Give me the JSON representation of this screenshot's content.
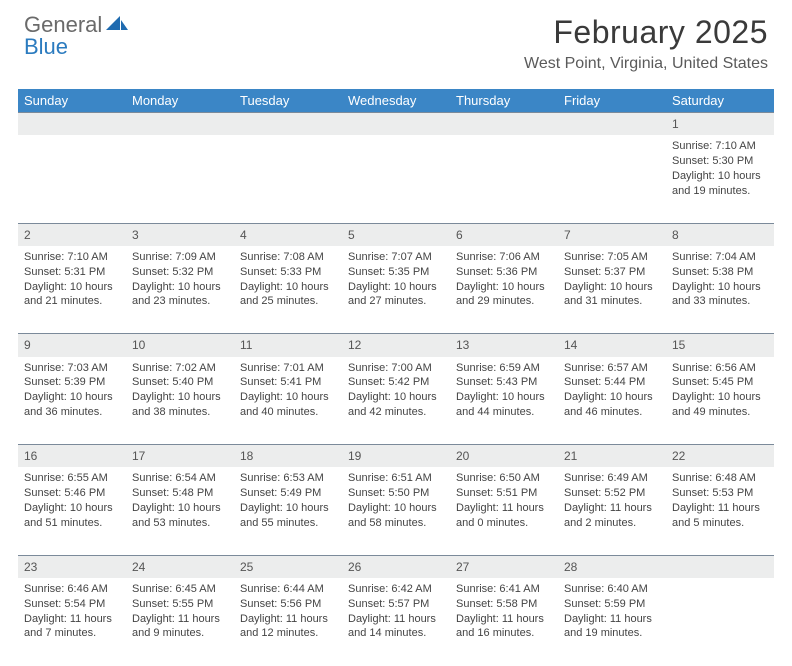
{
  "logo": {
    "word1": "General",
    "word2": "Blue",
    "word1_color": "#6a6a6a",
    "word2_color": "#2b7bbf",
    "sail_color": "#1f6bb0"
  },
  "title": "February 2025",
  "location": "West Point, Virginia, United States",
  "header_bg": "#3b86c6",
  "stripe_bg": "#eceded",
  "divider_color": "#7b8a9a",
  "text_color": "#444444",
  "day_headers": [
    "Sunday",
    "Monday",
    "Tuesday",
    "Wednesday",
    "Thursday",
    "Friday",
    "Saturday"
  ],
  "weeks": [
    [
      null,
      null,
      null,
      null,
      null,
      null,
      {
        "n": "1",
        "sunrise": "7:10 AM",
        "sunset": "5:30 PM",
        "dh": "10",
        "dm": "19"
      }
    ],
    [
      {
        "n": "2",
        "sunrise": "7:10 AM",
        "sunset": "5:31 PM",
        "dh": "10",
        "dm": "21"
      },
      {
        "n": "3",
        "sunrise": "7:09 AM",
        "sunset": "5:32 PM",
        "dh": "10",
        "dm": "23"
      },
      {
        "n": "4",
        "sunrise": "7:08 AM",
        "sunset": "5:33 PM",
        "dh": "10",
        "dm": "25"
      },
      {
        "n": "5",
        "sunrise": "7:07 AM",
        "sunset": "5:35 PM",
        "dh": "10",
        "dm": "27"
      },
      {
        "n": "6",
        "sunrise": "7:06 AM",
        "sunset": "5:36 PM",
        "dh": "10",
        "dm": "29"
      },
      {
        "n": "7",
        "sunrise": "7:05 AM",
        "sunset": "5:37 PM",
        "dh": "10",
        "dm": "31"
      },
      {
        "n": "8",
        "sunrise": "7:04 AM",
        "sunset": "5:38 PM",
        "dh": "10",
        "dm": "33"
      }
    ],
    [
      {
        "n": "9",
        "sunrise": "7:03 AM",
        "sunset": "5:39 PM",
        "dh": "10",
        "dm": "36"
      },
      {
        "n": "10",
        "sunrise": "7:02 AM",
        "sunset": "5:40 PM",
        "dh": "10",
        "dm": "38"
      },
      {
        "n": "11",
        "sunrise": "7:01 AM",
        "sunset": "5:41 PM",
        "dh": "10",
        "dm": "40"
      },
      {
        "n": "12",
        "sunrise": "7:00 AM",
        "sunset": "5:42 PM",
        "dh": "10",
        "dm": "42"
      },
      {
        "n": "13",
        "sunrise": "6:59 AM",
        "sunset": "5:43 PM",
        "dh": "10",
        "dm": "44"
      },
      {
        "n": "14",
        "sunrise": "6:57 AM",
        "sunset": "5:44 PM",
        "dh": "10",
        "dm": "46"
      },
      {
        "n": "15",
        "sunrise": "6:56 AM",
        "sunset": "5:45 PM",
        "dh": "10",
        "dm": "49"
      }
    ],
    [
      {
        "n": "16",
        "sunrise": "6:55 AM",
        "sunset": "5:46 PM",
        "dh": "10",
        "dm": "51"
      },
      {
        "n": "17",
        "sunrise": "6:54 AM",
        "sunset": "5:48 PM",
        "dh": "10",
        "dm": "53"
      },
      {
        "n": "18",
        "sunrise": "6:53 AM",
        "sunset": "5:49 PM",
        "dh": "10",
        "dm": "55"
      },
      {
        "n": "19",
        "sunrise": "6:51 AM",
        "sunset": "5:50 PM",
        "dh": "10",
        "dm": "58"
      },
      {
        "n": "20",
        "sunrise": "6:50 AM",
        "sunset": "5:51 PM",
        "dh": "11",
        "dm": "0"
      },
      {
        "n": "21",
        "sunrise": "6:49 AM",
        "sunset": "5:52 PM",
        "dh": "11",
        "dm": "2"
      },
      {
        "n": "22",
        "sunrise": "6:48 AM",
        "sunset": "5:53 PM",
        "dh": "11",
        "dm": "5"
      }
    ],
    [
      {
        "n": "23",
        "sunrise": "6:46 AM",
        "sunset": "5:54 PM",
        "dh": "11",
        "dm": "7"
      },
      {
        "n": "24",
        "sunrise": "6:45 AM",
        "sunset": "5:55 PM",
        "dh": "11",
        "dm": "9"
      },
      {
        "n": "25",
        "sunrise": "6:44 AM",
        "sunset": "5:56 PM",
        "dh": "11",
        "dm": "12"
      },
      {
        "n": "26",
        "sunrise": "6:42 AM",
        "sunset": "5:57 PM",
        "dh": "11",
        "dm": "14"
      },
      {
        "n": "27",
        "sunrise": "6:41 AM",
        "sunset": "5:58 PM",
        "dh": "11",
        "dm": "16"
      },
      {
        "n": "28",
        "sunrise": "6:40 AM",
        "sunset": "5:59 PM",
        "dh": "11",
        "dm": "19"
      },
      null
    ]
  ]
}
